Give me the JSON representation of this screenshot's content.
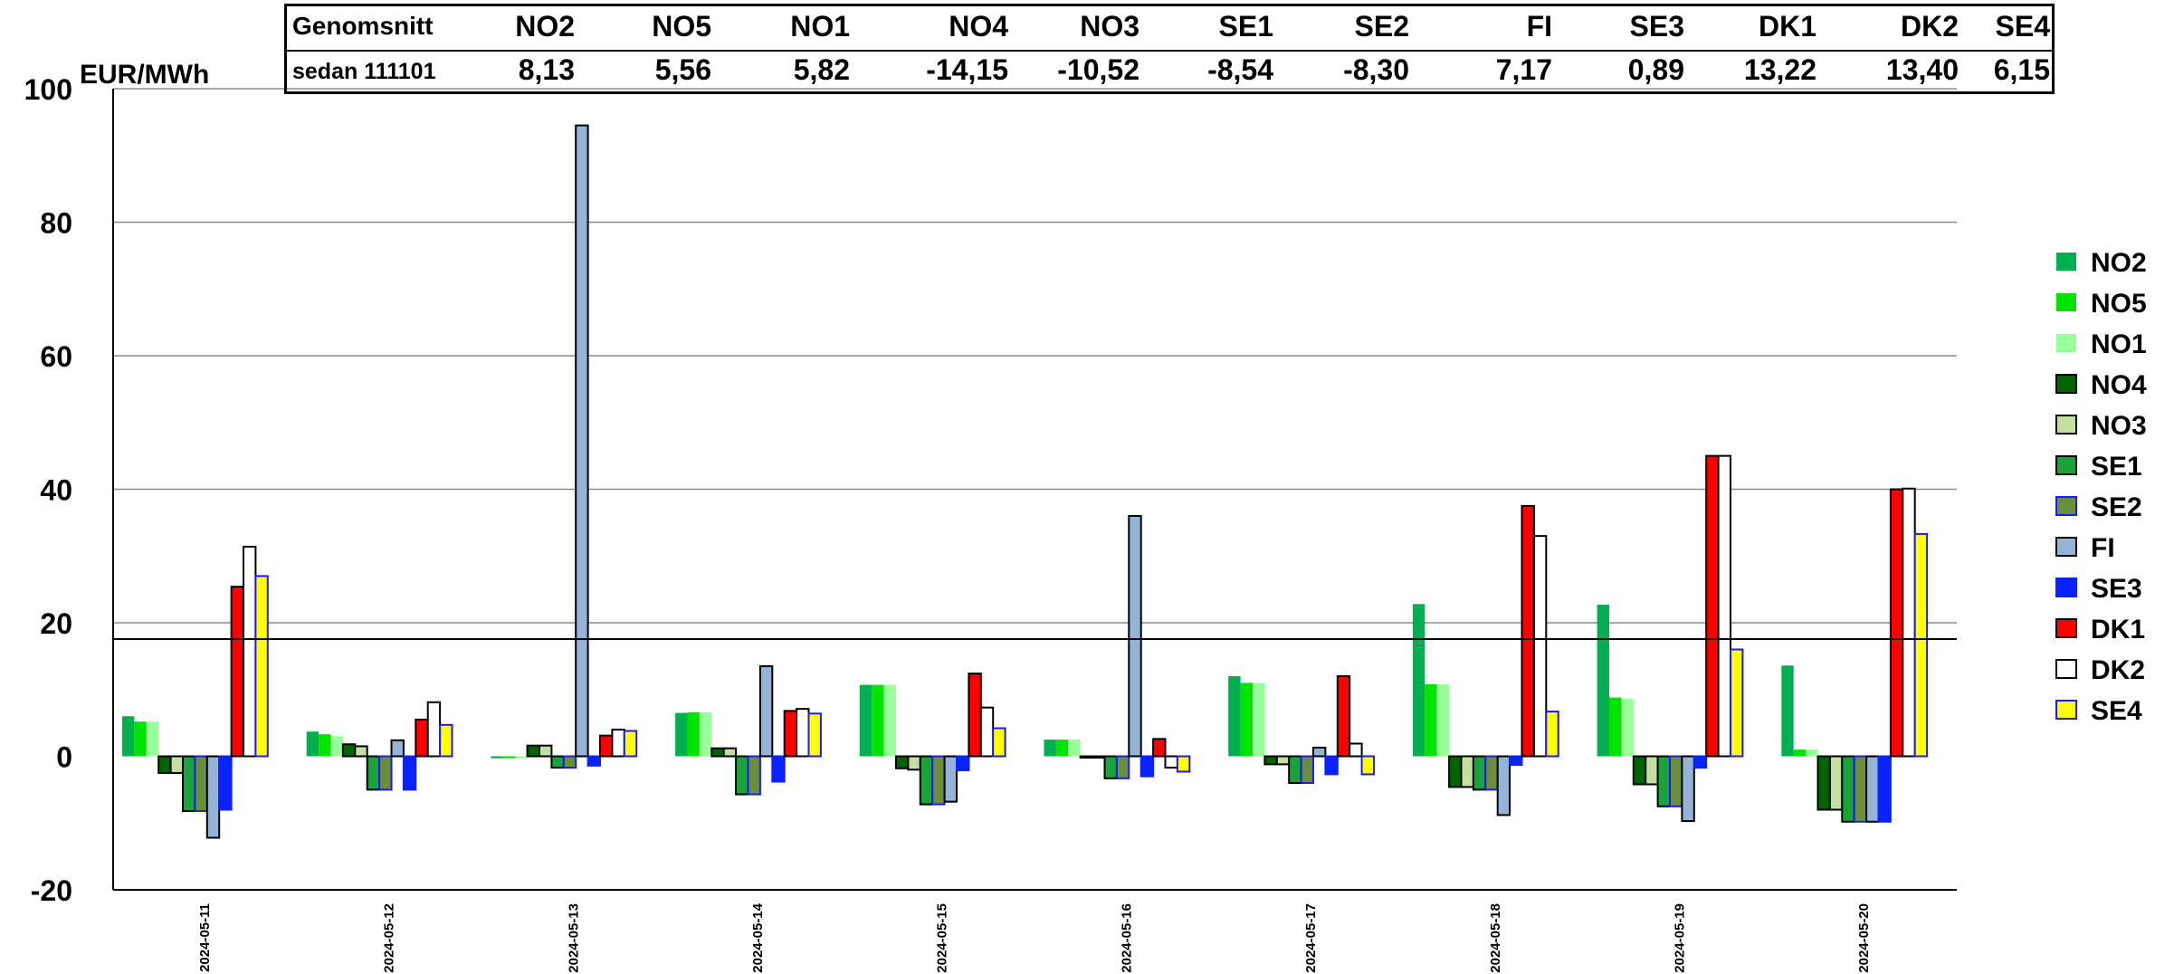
{
  "summary_table": {
    "row1_label": "Genomsnitt",
    "row2_label": "sedan 111101",
    "columns": [
      {
        "area": "NO2",
        "value": "8,13"
      },
      {
        "area": "NO5",
        "value": "5,56"
      },
      {
        "area": "NO1",
        "value": "5,82"
      },
      {
        "area": "NO4",
        "value": "-14,15"
      },
      {
        "area": "NO3",
        "value": "-10,52"
      },
      {
        "area": "SE1",
        "value": "-8,54"
      },
      {
        "area": "SE2",
        "value": "-8,30"
      },
      {
        "area": "FI",
        "value": "7,17"
      },
      {
        "area": "SE3",
        "value": "0,89"
      },
      {
        "area": "DK1",
        "value": "13,22"
      },
      {
        "area": "DK2",
        "value": "13,40"
      },
      {
        "area": "SE4",
        "value": "6,15"
      }
    ]
  },
  "chart_data": {
    "type": "bar",
    "ylabel": "EUR/MWh",
    "ylim": [
      -20,
      100
    ],
    "yticks": [
      -20,
      0,
      20,
      40,
      60,
      80,
      100
    ],
    "grid": true,
    "legend_position": "right",
    "categories": [
      "2024-05-11",
      "2024-05-12",
      "2024-05-13",
      "2024-05-14",
      "2024-05-15",
      "2024-05-16",
      "2024-05-17",
      "2024-05-18",
      "2024-05-19",
      "2024-05-20"
    ],
    "series": [
      {
        "name": "NO2",
        "color": "#00b050",
        "values": [
          6.0,
          3.7,
          -0.3,
          6.5,
          10.7,
          2.5,
          12.0,
          22.8,
          22.7,
          13.6
        ]
      },
      {
        "name": "NO5",
        "color": "#00e400",
        "values": [
          5.2,
          3.3,
          -0.3,
          6.6,
          10.7,
          2.5,
          11.0,
          10.8,
          8.8,
          1.0
        ]
      },
      {
        "name": "NO1",
        "color": "#99ff99",
        "values": [
          5.2,
          3.0,
          -0.3,
          6.6,
          10.7,
          2.5,
          11.0,
          10.8,
          8.6,
          1.0
        ]
      },
      {
        "name": "NO4",
        "color": "#006400",
        "values": [
          -2.5,
          1.8,
          1.6,
          1.2,
          -1.8,
          -0.2,
          -1.2,
          -4.6,
          -4.2,
          -8.0
        ]
      },
      {
        "name": "NO3",
        "color": "#c4e0a0",
        "values": [
          -2.5,
          1.5,
          1.6,
          1.2,
          -2.0,
          -0.2,
          -1.2,
          -4.6,
          -4.2,
          -8.0
        ]
      },
      {
        "name": "SE1",
        "color": "#1aa33a",
        "values": [
          -8.2,
          -5.0,
          -1.7,
          -5.7,
          -7.2,
          -3.3,
          -4.0,
          -5.0,
          -7.5,
          -9.8
        ]
      },
      {
        "name": "SE2",
        "color": "#6b8e3a",
        "values": [
          -8.2,
          -5.0,
          -1.7,
          -5.7,
          -7.2,
          -3.3,
          -4.0,
          -5.0,
          -7.5,
          -9.8
        ]
      },
      {
        "name": "FI",
        "color": "#95b3d7",
        "values": [
          -12.2,
          2.4,
          94.5,
          13.5,
          -6.8,
          36.0,
          1.3,
          -8.8,
          -9.7,
          -9.8
        ]
      },
      {
        "name": "SE3",
        "color": "#0a22ff",
        "values": [
          -8.0,
          -5.0,
          -1.4,
          -3.8,
          -2.1,
          -3.0,
          -2.7,
          -1.3,
          -1.7,
          -9.8
        ]
      },
      {
        "name": "DK1",
        "color": "#ff0000",
        "values": [
          25.4,
          5.5,
          3.1,
          6.8,
          12.4,
          2.6,
          12.0,
          37.5,
          45.0,
          40.0
        ]
      },
      {
        "name": "DK2",
        "color": "#ffffff",
        "values": [
          31.4,
          8.1,
          4.0,
          7.1,
          7.3,
          -1.7,
          1.9,
          33.0,
          45.0,
          40.1
        ]
      },
      {
        "name": "SE4",
        "color": "#ffff00",
        "values": [
          27.0,
          4.7,
          3.8,
          6.4,
          4.2,
          -2.3,
          -2.7,
          6.7,
          16.0,
          33.3
        ]
      }
    ]
  }
}
